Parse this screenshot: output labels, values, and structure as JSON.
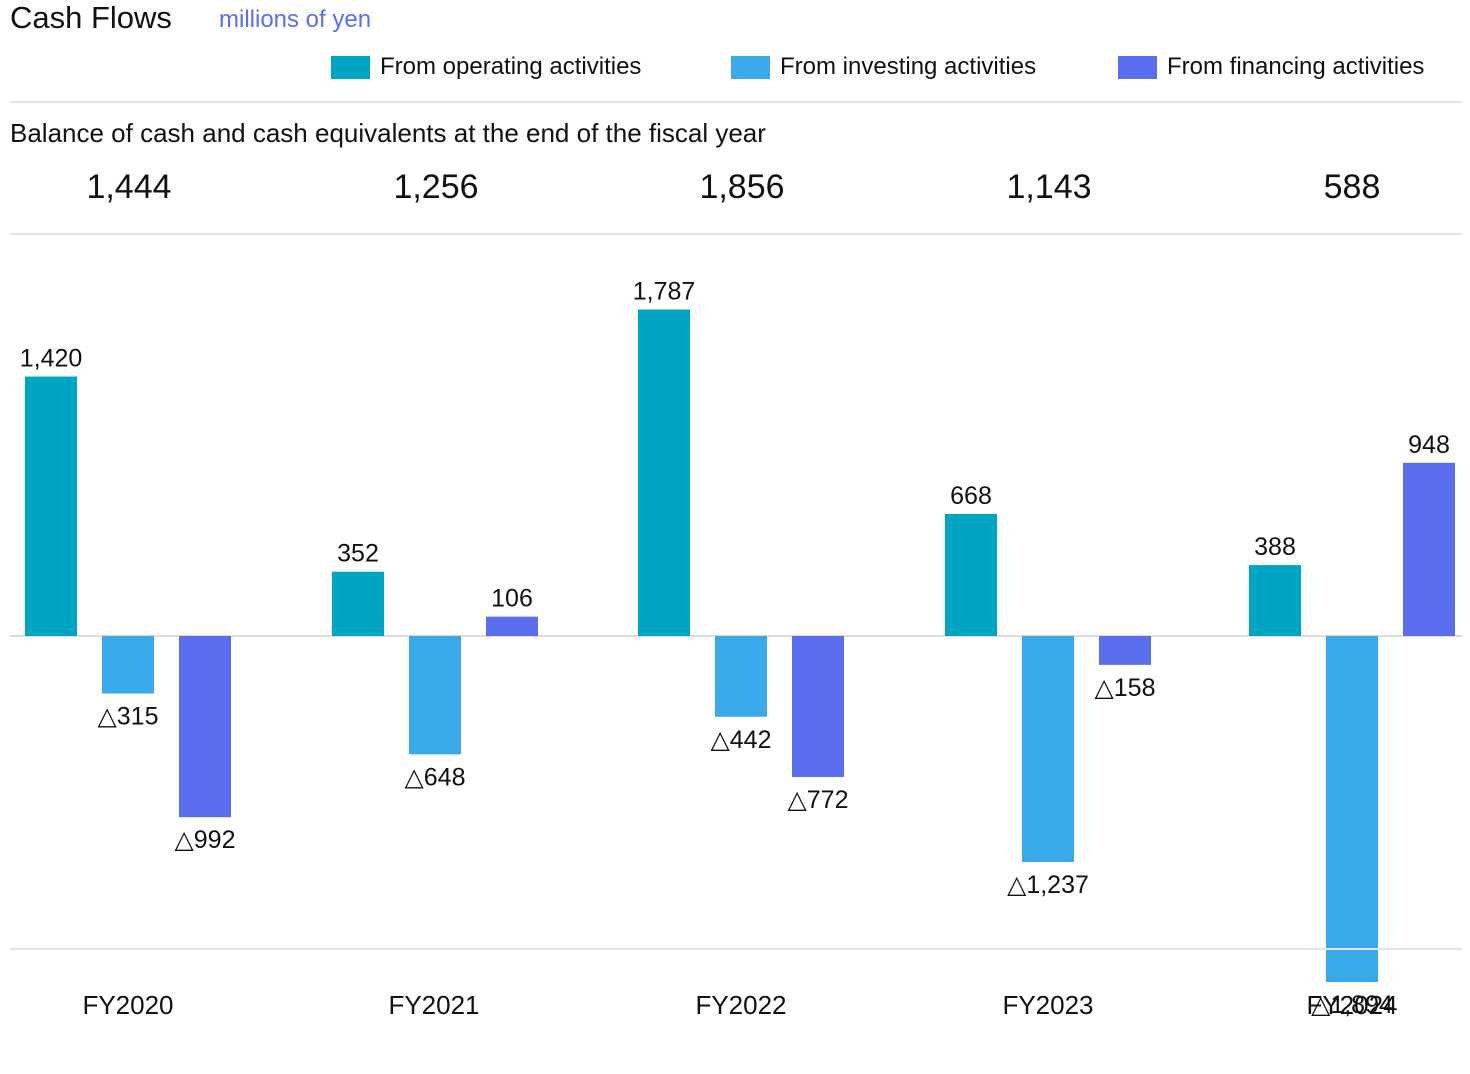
{
  "title": "Cash Flows",
  "unit": "millions of yen",
  "legend": [
    {
      "label": "From operating activities",
      "color": "#00a5c4"
    },
    {
      "label": "From investing activities",
      "color": "#3aa9ea"
    },
    {
      "label": "From financing activities",
      "color": "#5b6eee"
    }
  ],
  "balance": {
    "title": "Balance of cash and cash equivalents at the end of the fiscal year",
    "values": [
      "1,444",
      "1,256",
      "1,856",
      "1,143",
      "588"
    ]
  },
  "chart_data": {
    "type": "bar",
    "title": "Cash Flows",
    "categories": [
      "FY2020",
      "FY2021",
      "FY2022",
      "FY2023",
      "FY2024"
    ],
    "series": [
      {
        "name": "From operating activities",
        "color": "#00a5c4",
        "values": [
          1420,
          352,
          1787,
          668,
          388
        ],
        "labels": [
          "1,420",
          "352",
          "1,787",
          "668",
          "388"
        ]
      },
      {
        "name": "From investing activities",
        "color": "#3aa9ea",
        "values": [
          -315,
          -648,
          -442,
          -1237,
          -1894
        ],
        "labels": [
          "△315",
          "△648",
          "△442",
          "△1,237",
          "△1,894"
        ]
      },
      {
        "name": "From financing activities",
        "color": "#5b6eee",
        "values": [
          -992,
          106,
          -772,
          -158,
          948
        ],
        "labels": [
          "△992",
          "106",
          "△772",
          "△158",
          "948"
        ]
      }
    ],
    "ylim": [
      -2000,
      2000
    ],
    "grid": false,
    "legend_position": "top-right"
  }
}
